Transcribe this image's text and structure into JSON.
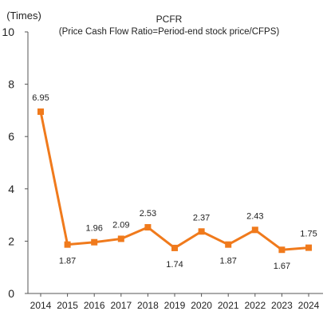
{
  "chart_data": {
    "type": "line",
    "title": "PCFR",
    "subtitle": "(Price Cash Flow Ratio=Period-end  stock price/CFPS)",
    "ylabel": "(Times)",
    "xlabel": "",
    "ylim": [
      0,
      10
    ],
    "yticks": [
      "0",
      "2",
      "4",
      "6",
      "8",
      "10"
    ],
    "categories": [
      "2014",
      "2015",
      "2016",
      "2017",
      "2018",
      "2019",
      "2020",
      "2021",
      "2022",
      "2023",
      "2024"
    ],
    "values": [
      6.95,
      1.87,
      1.96,
      2.09,
      2.53,
      1.74,
      2.37,
      1.87,
      2.43,
      1.67,
      1.75
    ],
    "data_labels": [
      "6.95",
      "1.87",
      "1.96",
      "2.09",
      "2.53",
      "1.74",
      "2.37",
      "1.87",
      "2.43",
      "1.67",
      "1.75"
    ],
    "grid": false,
    "legend": "none",
    "series_color": "#f07a1c",
    "marker": "square"
  }
}
